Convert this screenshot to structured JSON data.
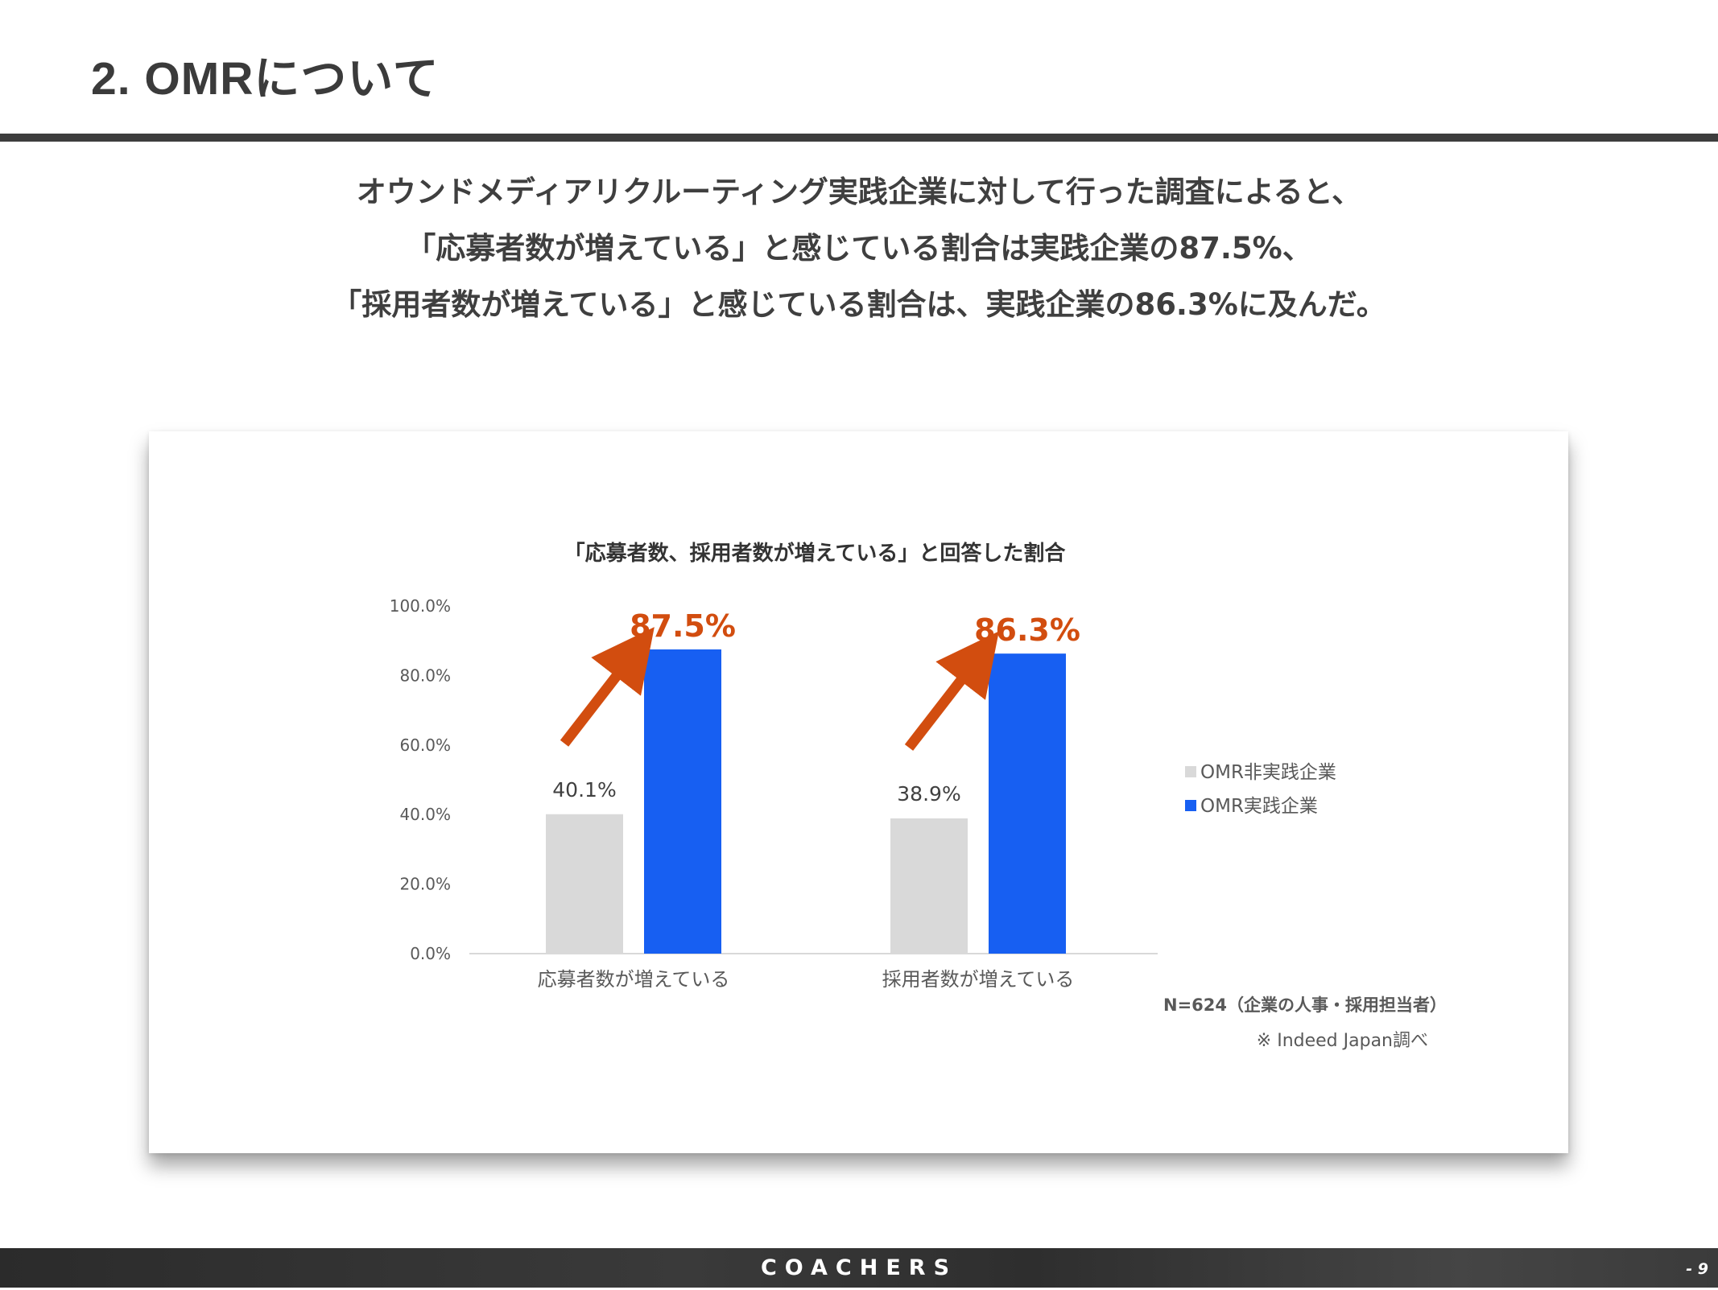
{
  "slide": {
    "title": "2. OMRについて"
  },
  "summary": {
    "line1": "オウンドメディアリクルーティング実践企業に対して行った調査によると、",
    "line2": "「応募者数が増えている」と感じている割合は実践企業の87.5%、",
    "line3": "「採用者数が増えている」と感じている割合は、実践企業の86.3%に及んだ。"
  },
  "chart_data": {
    "type": "bar",
    "title": "「応募者数、採用者数が増えている」と回答した割合",
    "categories": [
      "応募者数が増えている",
      "採用者数が増えている"
    ],
    "series": [
      {
        "name": "OMR非実践企業",
        "values": [
          40.1,
          38.9
        ],
        "labels": [
          "40.1%",
          "38.9%"
        ],
        "color": "#d9d9d9"
      },
      {
        "name": "OMR実践企業",
        "values": [
          87.5,
          86.3
        ],
        "labels": [
          "87.5%",
          "86.3%"
        ],
        "color": "#175ff2"
      }
    ],
    "highlight_color": "#d24d0f",
    "ylim": [
      0,
      100
    ],
    "yticks": [
      "0.0%",
      "20.0%",
      "40.0%",
      "60.0%",
      "80.0%",
      "100.0%"
    ],
    "grid": false,
    "legend_position": "right",
    "notes": [
      "N=624（企業の人事・採用担当者）",
      "※ Indeed Japan調べ"
    ]
  },
  "footer": {
    "brand": "COACHERS",
    "page": "- 9"
  }
}
